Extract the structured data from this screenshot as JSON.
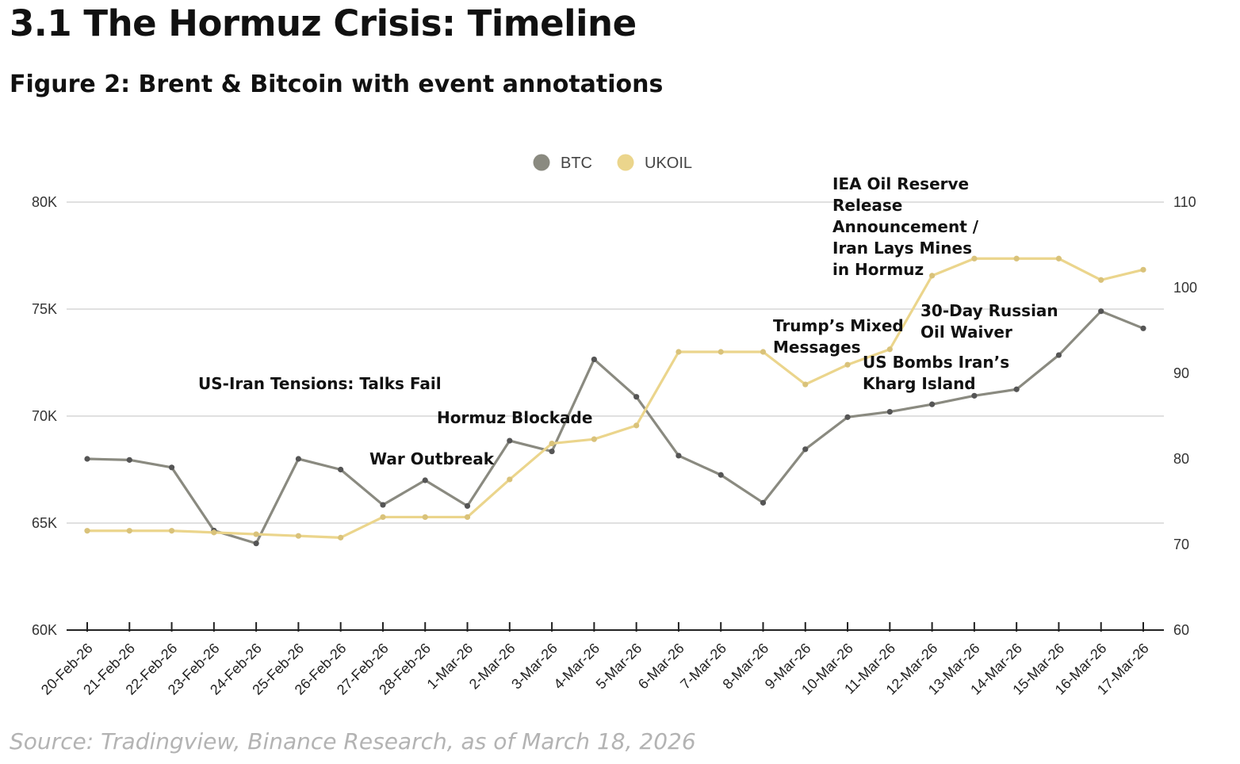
{
  "header": {
    "section_title": "3.1 The Hormuz Crisis: Timeline",
    "figure_title": "Figure 2: Brent & Bitcoin with event annotations"
  },
  "footer": {
    "source": "Source: Tradingview, Binance Research, as of March 18, 2026"
  },
  "chart_data": {
    "type": "line",
    "title": "Figure 2: Brent & Bitcoin with event annotations",
    "categories": [
      "20-Feb-26",
      "21-Feb-26",
      "22-Feb-26",
      "23-Feb-26",
      "24-Feb-26",
      "25-Feb-26",
      "26-Feb-26",
      "27-Feb-26",
      "28-Feb-26",
      "1-Mar-26",
      "2-Mar-26",
      "3-Mar-26",
      "4-Mar-26",
      "5-Mar-26",
      "6-Mar-26",
      "7-Mar-26",
      "8-Mar-26",
      "9-Mar-26",
      "10-Mar-26",
      "11-Mar-26",
      "12-Mar-26",
      "13-Mar-26",
      "14-Mar-26",
      "15-Mar-26",
      "16-Mar-26",
      "17-Mar-26"
    ],
    "left_axis": {
      "ylim": [
        60000,
        80000
      ],
      "ticks": [
        60000,
        65000,
        70000,
        75000,
        80000
      ],
      "tick_labels": [
        "60K",
        "65K",
        "70K",
        "75K",
        "80K"
      ]
    },
    "right_axis": {
      "ylim": [
        60,
        110
      ],
      "ticks": [
        60,
        70,
        80,
        90,
        100,
        110
      ],
      "tick_labels": [
        "60",
        "70",
        "80",
        "90",
        "100",
        "110"
      ]
    },
    "grid": true,
    "legend_position": "top-center",
    "series": [
      {
        "name": "BTC",
        "axis": "left",
        "color": "#8a8a80",
        "marker_color": "#555555",
        "values": [
          68000,
          67950,
          67600,
          64650,
          64050,
          68000,
          67500,
          65850,
          67000,
          65800,
          68850,
          68350,
          72650,
          70900,
          68150,
          67250,
          65950,
          68450,
          69950,
          70200,
          70550,
          70950,
          71250,
          72850,
          74900,
          74100
        ]
      },
      {
        "name": "UKOIL",
        "axis": "right",
        "color": "#ebd58c",
        "marker_color": "#d9c27a",
        "values": [
          71.6,
          71.6,
          71.6,
          71.4,
          71.2,
          71.0,
          70.8,
          73.2,
          73.2,
          73.2,
          77.6,
          81.8,
          82.3,
          83.9,
          92.5,
          92.5,
          92.5,
          88.7,
          91.0,
          92.8,
          101.4,
          103.4,
          103.4,
          103.4,
          100.9,
          102.1
        ]
      }
    ],
    "annotations": [
      {
        "lines": [
          "US-Iran Tensions: Talks Fail"
        ]
      },
      {
        "lines": [
          "Hormuz Blockade"
        ]
      },
      {
        "lines": [
          "War Outbreak"
        ]
      },
      {
        "lines": [
          "Trump’s Mixed",
          "Messages"
        ]
      },
      {
        "lines": [
          "US Bombs Iran’s",
          "Kharg Island"
        ]
      },
      {
        "lines": [
          "IEA Oil Reserve",
          "Release",
          "Announcement /",
          "Iran Lays Mines",
          "in Hormuz"
        ]
      },
      {
        "lines": [
          "30-Day Russian",
          "Oil Waiver"
        ]
      }
    ]
  }
}
